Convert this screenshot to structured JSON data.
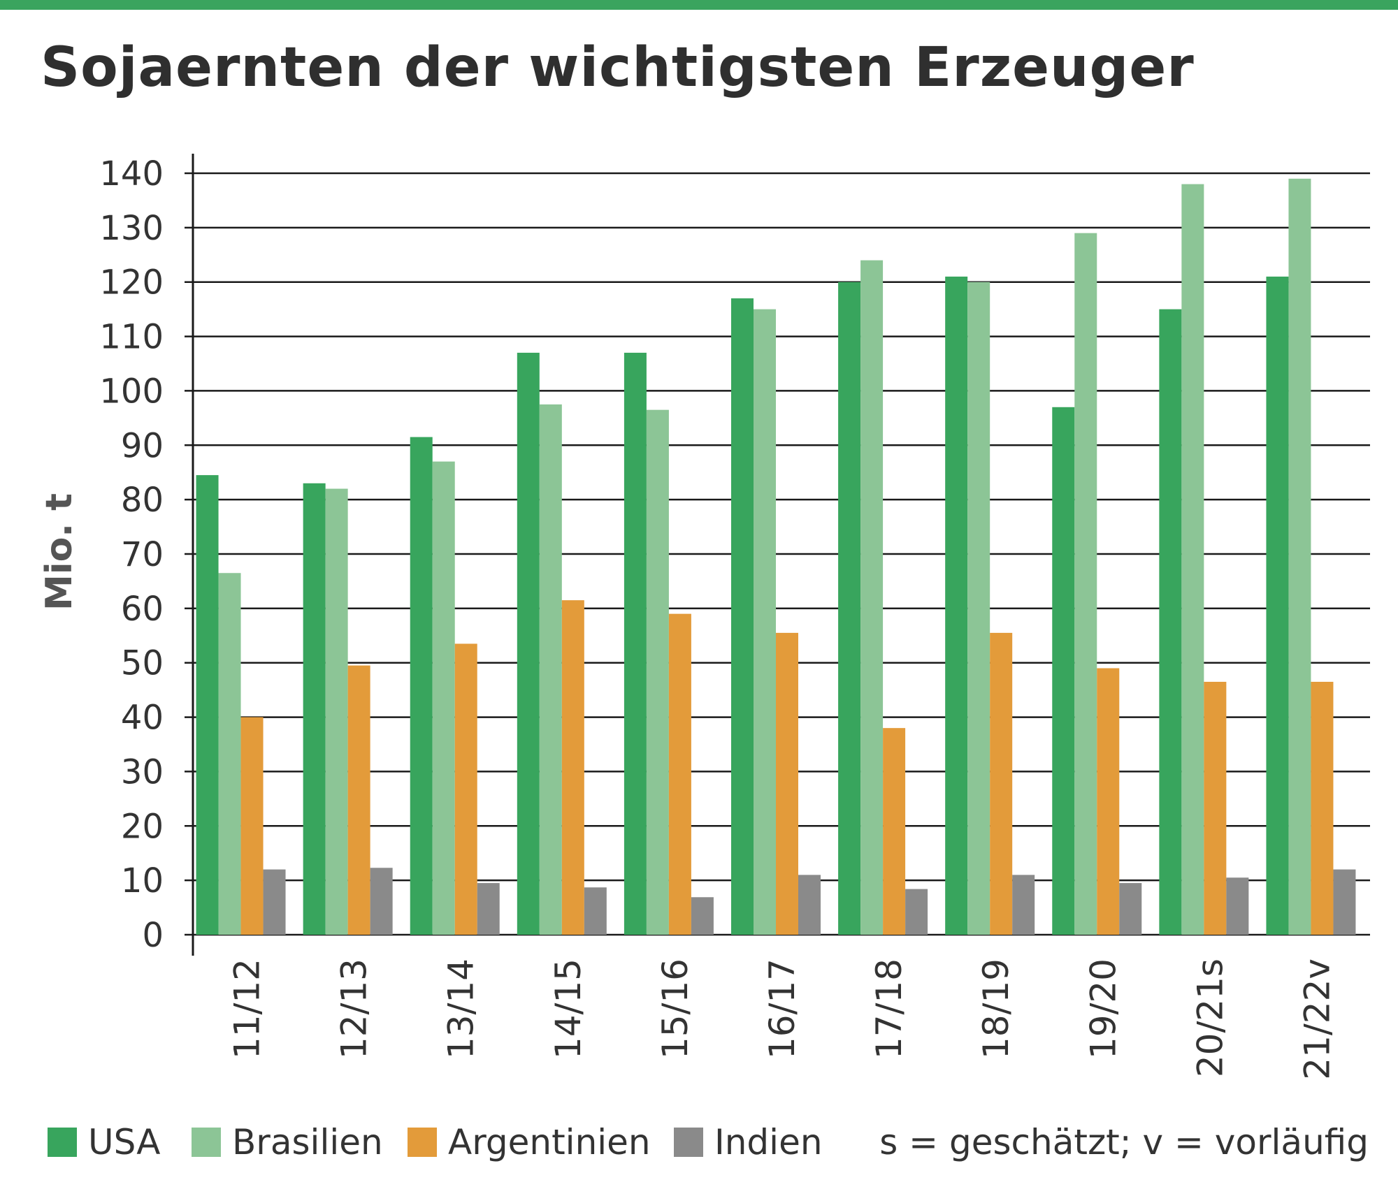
{
  "chart_data": {
    "type": "bar",
    "title": "Sojaernten der wichtigsten Erzeuger",
    "ylabel": "Mio. t",
    "xlabel": "",
    "ylim": [
      0,
      140
    ],
    "yticks": [
      0,
      10,
      20,
      30,
      40,
      50,
      60,
      70,
      80,
      90,
      100,
      110,
      120,
      130,
      140
    ],
    "grid": true,
    "legend_position": "bottom",
    "categories": [
      "11/12",
      "12/13",
      "13/14",
      "14/15",
      "15/16",
      "16/17",
      "17/18",
      "18/19",
      "19/20",
      "20/21s",
      "21/22v"
    ],
    "series": [
      {
        "name": "USA",
        "color": "#38a55d",
        "values": [
          84.5,
          83,
          91.5,
          107,
          107,
          117,
          120,
          121,
          97,
          115,
          121
        ]
      },
      {
        "name": "Brasilien",
        "color": "#8cc596",
        "values": [
          66.5,
          82,
          87,
          97.5,
          96.5,
          115,
          124,
          120,
          129,
          138,
          139
        ]
      },
      {
        "name": "Argentinien",
        "color": "#e39b3a",
        "values": [
          40,
          49.5,
          53.5,
          61.5,
          59,
          55.5,
          38,
          55.5,
          49,
          46.5,
          46.5
        ]
      },
      {
        "name": "Indien",
        "color": "#8a8a8a",
        "values": [
          12,
          12.3,
          9.5,
          8.7,
          6.9,
          11,
          8.4,
          11,
          9.5,
          10.5,
          12
        ]
      }
    ],
    "footnote": "s = geschätzt; v = vorläufig"
  }
}
